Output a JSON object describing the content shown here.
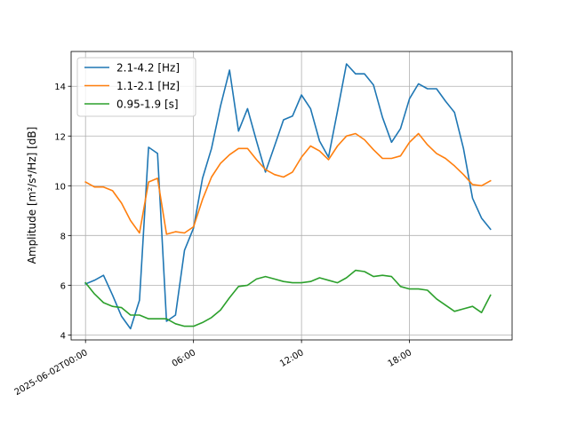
{
  "chart_data": {
    "type": "line",
    "ylabel": "Amplitude [m²/s⁴/Hz] [dB]",
    "ylim": [
      3.8,
      15.4
    ],
    "xlim": [
      -0.8,
      23.7
    ],
    "grid": true,
    "legend_position": "top-left",
    "x_hours": [
      0,
      0.5,
      1,
      1.5,
      2,
      2.5,
      3,
      3.5,
      4,
      4.5,
      5,
      5.5,
      6,
      6.5,
      7,
      7.5,
      8,
      8.5,
      9,
      9.5,
      10,
      10.5,
      11,
      11.5,
      12,
      12.5,
      13,
      13.5,
      14,
      14.5,
      15,
      15.5,
      16,
      16.5,
      17,
      17.5,
      18,
      18.5,
      19,
      19.5,
      20,
      20.5,
      21,
      21.5,
      22,
      22.5
    ],
    "x_ticks": [
      {
        "hour": 0,
        "label": "2025-06-02T00:00"
      },
      {
        "hour": 6,
        "label": "06:00"
      },
      {
        "hour": 12,
        "label": "12:00"
      },
      {
        "hour": 18,
        "label": "18:00"
      }
    ],
    "y_ticks": [
      4,
      6,
      8,
      10,
      12,
      14
    ],
    "series": [
      {
        "name": "2.1-4.2 [Hz]",
        "color": "#1f77b4",
        "values": [
          6.05,
          6.2,
          6.4,
          5.6,
          4.75,
          4.25,
          5.4,
          11.55,
          11.3,
          4.55,
          4.8,
          7.4,
          8.3,
          10.3,
          11.5,
          13.2,
          14.65,
          12.2,
          13.1,
          11.8,
          10.55,
          11.6,
          12.65,
          12.8,
          13.65,
          13.1,
          11.8,
          11.15,
          13.0,
          14.9,
          14.5,
          14.5,
          14.05,
          12.75,
          11.75,
          12.3,
          13.5,
          14.1,
          13.9,
          13.9,
          13.4,
          12.95,
          11.5,
          9.5,
          8.7,
          8.25
        ]
      },
      {
        "name": "1.1-2.1 [Hz]",
        "color": "#ff7f0e",
        "values": [
          10.15,
          9.95,
          9.95,
          9.8,
          9.3,
          8.6,
          8.1,
          10.15,
          10.3,
          8.05,
          8.15,
          8.1,
          8.35,
          9.45,
          10.35,
          10.9,
          11.25,
          11.5,
          11.5,
          11.05,
          10.65,
          10.45,
          10.35,
          10.55,
          11.15,
          11.6,
          11.4,
          11.05,
          11.6,
          12.0,
          12.1,
          11.85,
          11.45,
          11.1,
          11.1,
          11.2,
          11.75,
          12.1,
          11.65,
          11.3,
          11.1,
          10.8,
          10.45,
          10.05,
          10.0,
          10.2
        ]
      },
      {
        "name": "0.95-1.9 [s]",
        "color": "#2ca02c",
        "values": [
          6.1,
          5.65,
          5.3,
          5.15,
          5.1,
          4.8,
          4.8,
          4.65,
          4.65,
          4.65,
          4.45,
          4.35,
          4.35,
          4.5,
          4.7,
          5.0,
          5.5,
          5.95,
          6.0,
          6.25,
          6.35,
          6.25,
          6.15,
          6.1,
          6.1,
          6.15,
          6.3,
          6.2,
          6.1,
          6.3,
          6.6,
          6.55,
          6.35,
          6.4,
          6.35,
          5.95,
          5.85,
          5.85,
          5.8,
          5.45,
          5.2,
          4.95,
          5.05,
          5.15,
          4.9,
          5.6
        ]
      }
    ]
  }
}
